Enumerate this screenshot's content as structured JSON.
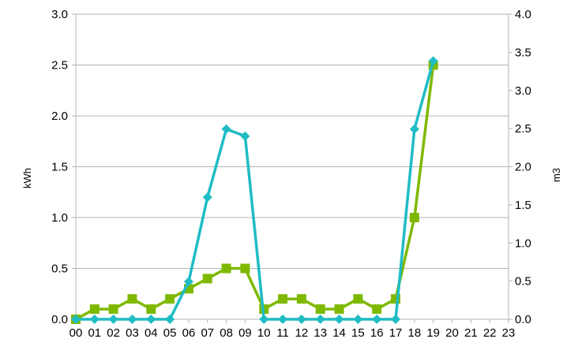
{
  "chart_data": {
    "type": "line",
    "categories": [
      "00",
      "01",
      "02",
      "03",
      "04",
      "05",
      "06",
      "07",
      "08",
      "09",
      "10",
      "11",
      "12",
      "13",
      "14",
      "15",
      "16",
      "17",
      "18",
      "19",
      "20",
      "21",
      "22",
      "23"
    ],
    "y_left": {
      "label": "kWh",
      "range": [
        0,
        3
      ],
      "ticks": [
        "0.0",
        "0.5",
        "1.0",
        "1.5",
        "2.0",
        "2.5",
        "3.0"
      ]
    },
    "y_right": {
      "label": "m3",
      "range": [
        0,
        4
      ],
      "ticks": [
        "0.0",
        "0.5",
        "1.0",
        "1.5",
        "2.0",
        "2.5",
        "3.0",
        "3.5",
        "4.0"
      ]
    },
    "grid": true,
    "legend": "none",
    "series": [
      {
        "axis": "left",
        "color": "#7eb900",
        "marker": "square",
        "values": [
          0.0,
          0.1,
          0.1,
          0.2,
          0.1,
          0.2,
          0.3,
          0.4,
          0.5,
          0.5,
          0.1,
          0.2,
          0.2,
          0.1,
          0.1,
          0.2,
          0.1,
          0.2,
          1.0,
          2.5,
          null,
          null,
          null,
          null
        ]
      },
      {
        "axis": "left",
        "color": "#1fbcc4",
        "marker": "diamond",
        "values": [
          0.0,
          0.0,
          0.0,
          0.0,
          0.0,
          0.0,
          0.37,
          1.2,
          1.87,
          1.8,
          0.0,
          0.0,
          0.0,
          0.0,
          0.0,
          0.0,
          0.0,
          0.0,
          1.87,
          2.54,
          null,
          null,
          null,
          null
        ]
      }
    ]
  }
}
